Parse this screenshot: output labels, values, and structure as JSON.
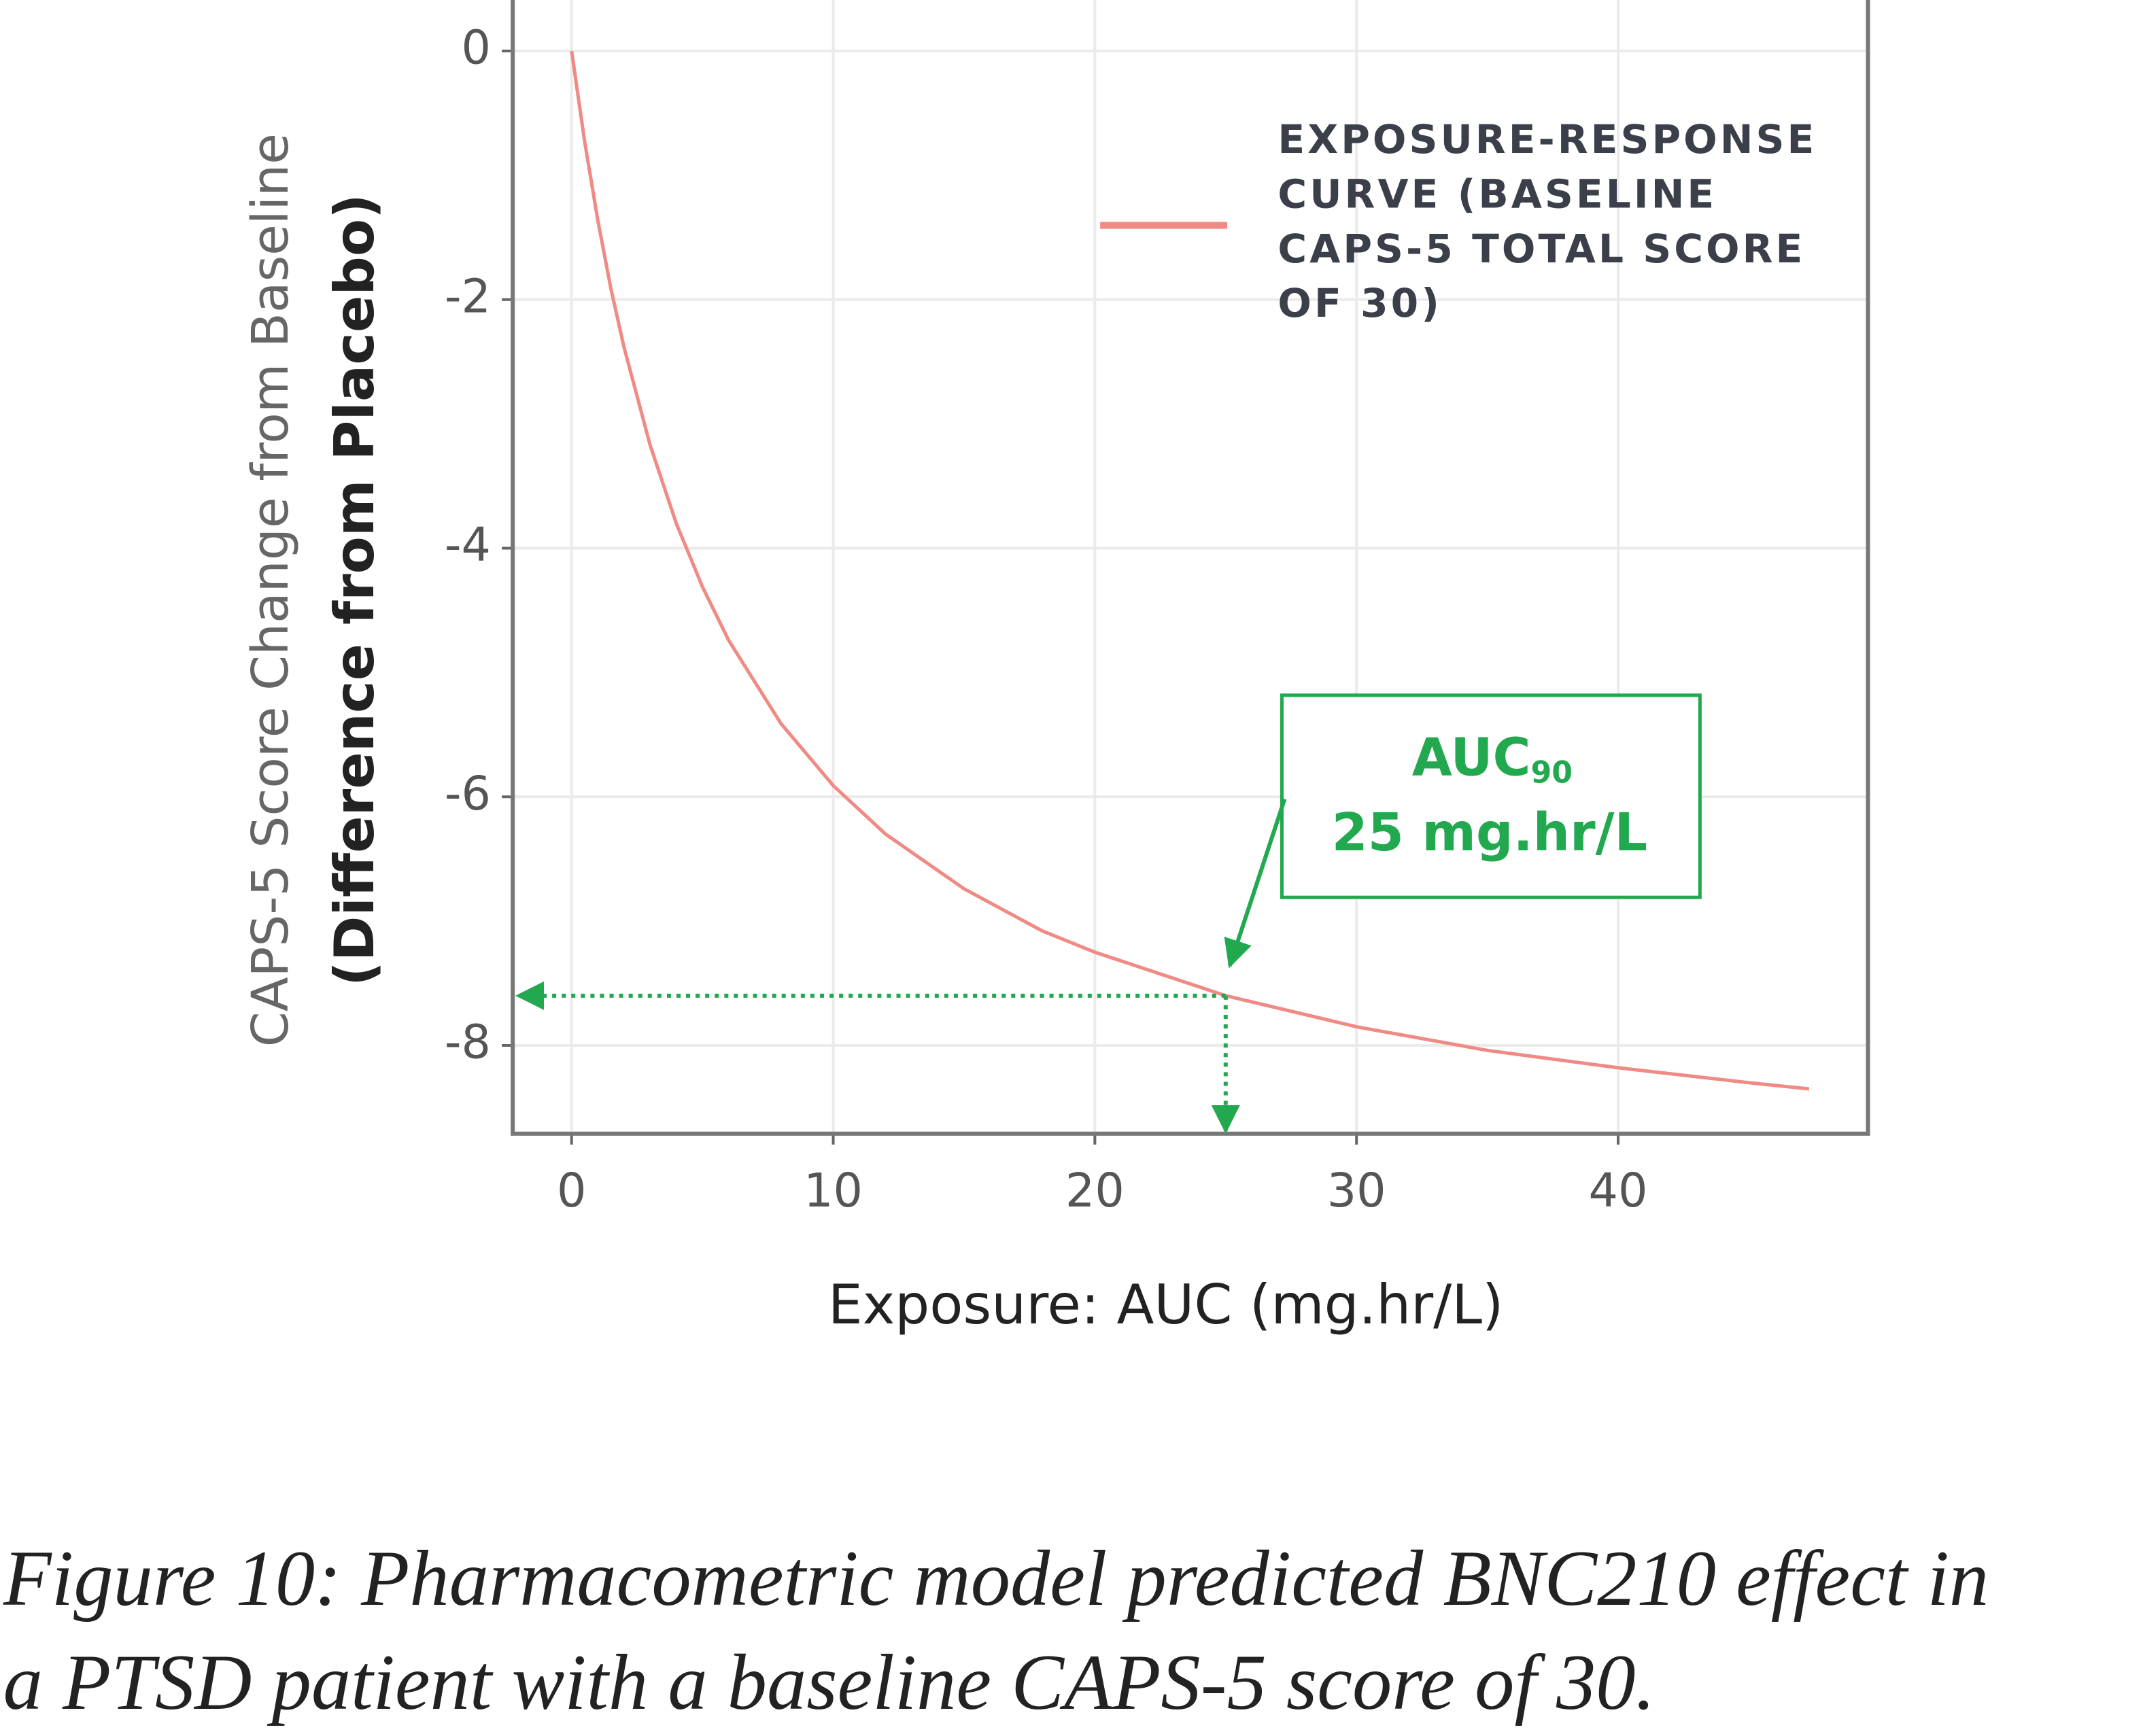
{
  "chart_data": {
    "type": "line",
    "xlabel": "Exposure: AUC (mg.hr/L)",
    "ylabel": [
      "CAPS-5 Score Change from Baseline",
      "(Difference from Placebo)"
    ],
    "x": [
      0,
      0.5,
      1,
      1.5,
      2,
      3,
      4,
      5,
      6,
      8,
      10,
      12,
      15,
      18,
      20,
      25,
      30,
      35,
      40,
      45,
      47.3
    ],
    "series": [
      {
        "name": "EXPOSURE-RESPONSE CURVE (BASELINE CAPS-5 TOTAL SCORE OF 30)",
        "color": "#f08a84",
        "values": [
          0,
          -0.73,
          -1.36,
          -1.91,
          -2.38,
          -3.17,
          -3.8,
          -4.31,
          -4.74,
          -5.41,
          -5.91,
          -6.3,
          -6.74,
          -7.08,
          -7.25,
          -7.6,
          -7.85,
          -8.04,
          -8.18,
          -8.3,
          -8.35
        ]
      }
    ],
    "xlim": [
      -2.25,
      49.55
    ],
    "xticks": [
      0,
      10,
      20,
      30,
      40
    ],
    "ylim": [
      -8.71,
      0.41
    ],
    "yticks": [
      0,
      -2,
      -4,
      -6,
      -8
    ],
    "grid": true,
    "legend": "top-right",
    "annotation": {
      "text": "AUC",
      "subscript": "90",
      "value_text": "25 mg.hr/L",
      "x": 25,
      "y": -7.6,
      "color": "#22a94f"
    },
    "caption": "Figure 10: Pharmacometric model predicted BNC210 effect in a PTSD patient with a baseline CAPS-5 score of 30."
  }
}
